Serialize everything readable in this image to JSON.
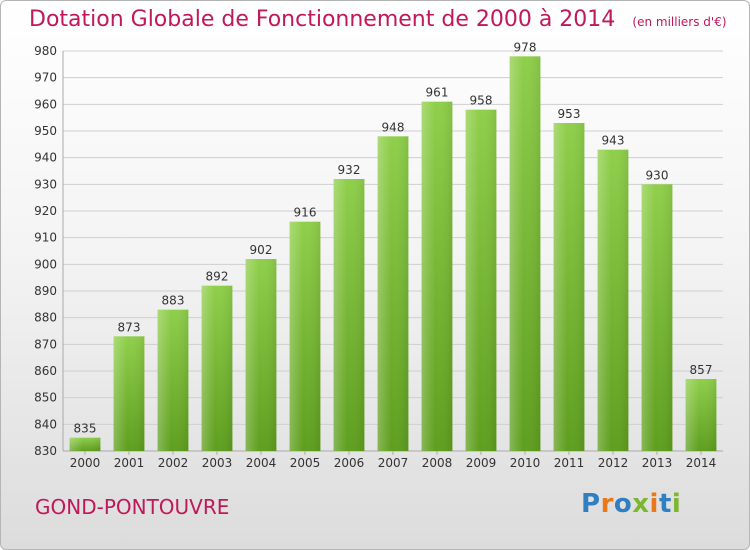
{
  "title": "Dotation Globale de Fonctionnement de 2000 à 2014",
  "subtitle": "(en milliers d'€)",
  "commune": "GOND-PONTOUVRE",
  "logo": {
    "text": "Proxiti",
    "letters": [
      "P",
      "r",
      "o",
      "x",
      "i",
      "t",
      "i"
    ],
    "colors": [
      "#2f7fc1",
      "#e8781a",
      "#2f7fc1",
      "#7cb82f",
      "#e8781a",
      "#2f7fc1",
      "#7cb82f"
    ]
  },
  "colors": {
    "title": "#c0185a",
    "bar_top": "#8fcf4a",
    "bar_bottom": "#5e9e1e",
    "grid": "#cfcfcf"
  },
  "chart_data": {
    "type": "bar",
    "categories": [
      "2000",
      "2001",
      "2002",
      "2003",
      "2004",
      "2005",
      "2006",
      "2007",
      "2008",
      "2009",
      "2010",
      "2011",
      "2012",
      "2013",
      "2014"
    ],
    "values": [
      835,
      873,
      883,
      892,
      902,
      916,
      932,
      948,
      961,
      958,
      978,
      953,
      943,
      930,
      857
    ],
    "ylim": [
      830,
      980
    ],
    "yticks": [
      830,
      840,
      850,
      860,
      870,
      880,
      890,
      900,
      910,
      920,
      930,
      940,
      950,
      960,
      970,
      980
    ],
    "grid": true
  }
}
